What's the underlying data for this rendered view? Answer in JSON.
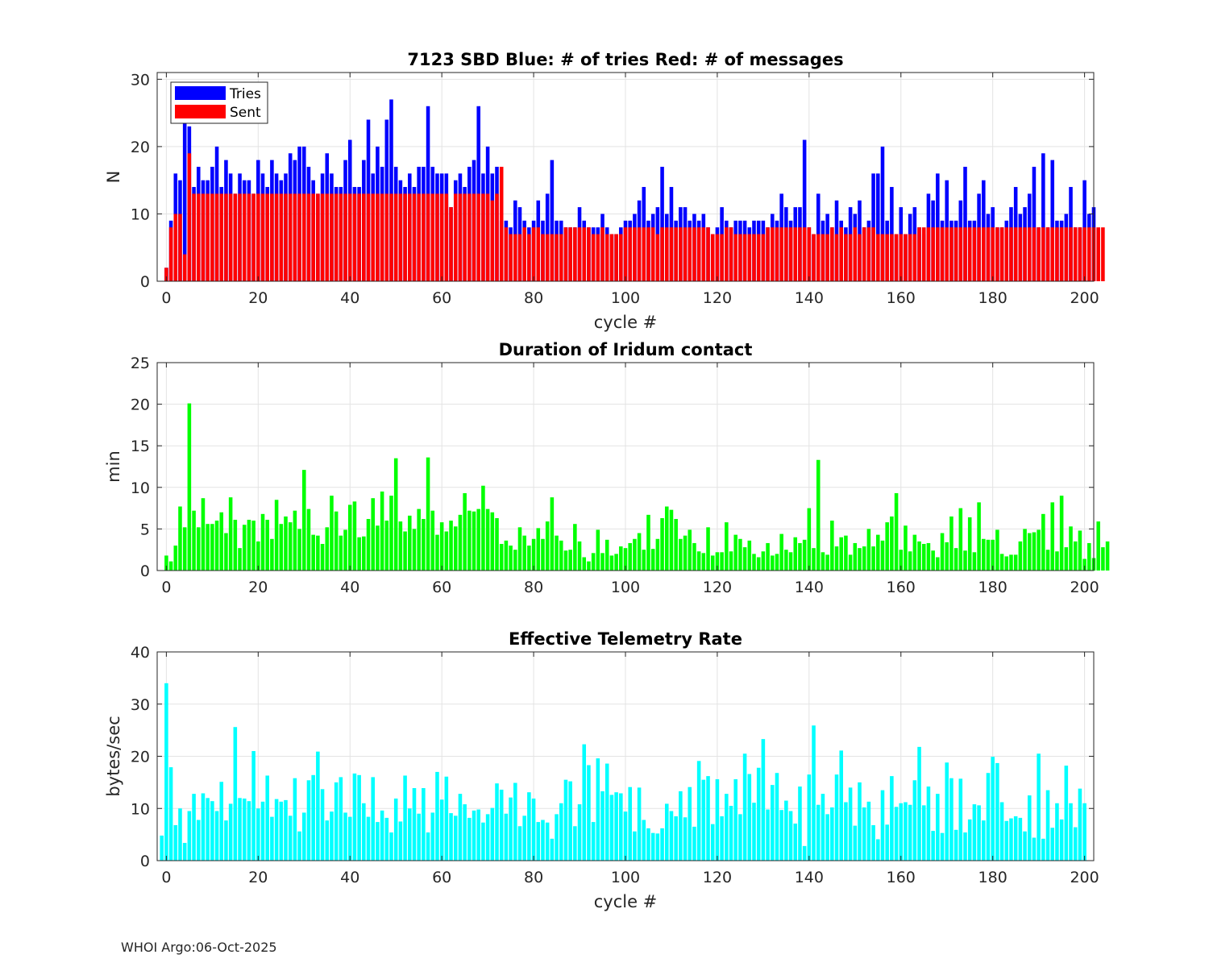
{
  "chart_data": [
    {
      "type": "bar",
      "stacked_overlay": true,
      "title": "7123 SBD  Blue: # of tries   Red: # of messages",
      "xlabel": "cycle #",
      "ylabel": "N",
      "xlim": [
        -2,
        202
      ],
      "ylim": [
        0,
        31
      ],
      "xticks": [
        0,
        20,
        40,
        60,
        80,
        100,
        120,
        140,
        160,
        180,
        200
      ],
      "yticks": [
        0,
        10,
        20,
        30
      ],
      "grid": true,
      "legend": {
        "position": "top-left",
        "entries": [
          "Tries",
          "Sent"
        ]
      },
      "x_start": 0,
      "series": [
        {
          "name": "Tries",
          "color": "#0000ff",
          "values": [
            2,
            9,
            16,
            15,
            24,
            23,
            14,
            17,
            15,
            15,
            17,
            20,
            14,
            18,
            16,
            13,
            16,
            15,
            15,
            13,
            18,
            16,
            14,
            18,
            16,
            15,
            16,
            19,
            18,
            20,
            20,
            17,
            15,
            13,
            16,
            19,
            16,
            14,
            14,
            18,
            21,
            14,
            14,
            18,
            24,
            16,
            20,
            17,
            24,
            27,
            17,
            15,
            14,
            16,
            14,
            17,
            17,
            26,
            17,
            16,
            16,
            16,
            11,
            15,
            16,
            14,
            17,
            18,
            26,
            16,
            20,
            16,
            17,
            9,
            9,
            8,
            12,
            11,
            9,
            8,
            9,
            12,
            9,
            13,
            18,
            9,
            9,
            8,
            8,
            8,
            11,
            9,
            8,
            8,
            8,
            10,
            8,
            7,
            7,
            8,
            9,
            9,
            10,
            12,
            14,
            9,
            10,
            11,
            17,
            10,
            14,
            9,
            11,
            11,
            9,
            10,
            9,
            10,
            8,
            7,
            8,
            11,
            9,
            8,
            9,
            9,
            9,
            8,
            9,
            9,
            9,
            8,
            10,
            9,
            13,
            11,
            9,
            11,
            11,
            21,
            8,
            7,
            13,
            9,
            10,
            8,
            12,
            9,
            8,
            11,
            10,
            12,
            8,
            9,
            16,
            16,
            20,
            9,
            14,
            7,
            11,
            7,
            10,
            11,
            8,
            7,
            13,
            12,
            16,
            9,
            15,
            9,
            9,
            12,
            17,
            9,
            9,
            13,
            15,
            10,
            11,
            8,
            8,
            9,
            11,
            14,
            10,
            11,
            13,
            17,
            8,
            19,
            8,
            18,
            9,
            9,
            10,
            14,
            8,
            8,
            15,
            10,
            11
          ]
        },
        {
          "name": "Sent",
          "color": "#ff0000",
          "values": [
            2,
            8,
            10,
            10,
            4,
            19,
            13,
            13,
            13,
            13,
            13,
            13,
            13,
            13,
            13,
            13,
            13,
            13,
            13,
            13,
            13,
            13,
            13,
            13,
            13,
            13,
            13,
            13,
            13,
            13,
            13,
            13,
            13,
            13,
            13,
            13,
            13,
            13,
            13,
            13,
            13,
            13,
            13,
            13,
            13,
            13,
            13,
            13,
            13,
            13,
            13,
            13,
            13,
            13,
            13,
            13,
            13,
            13,
            13,
            13,
            13,
            13,
            11,
            13,
            13,
            13,
            13,
            13,
            13,
            13,
            13,
            12,
            13,
            17,
            8,
            7,
            7,
            7,
            8,
            7,
            8,
            8,
            7,
            7,
            7,
            7,
            7,
            8,
            8,
            8,
            8,
            8,
            8,
            7,
            7,
            8,
            7,
            7,
            7,
            7,
            8,
            8,
            8,
            8,
            8,
            8,
            8,
            7,
            8,
            8,
            8,
            8,
            8,
            8,
            8,
            8,
            8,
            8,
            8,
            7,
            7,
            7,
            8,
            8,
            7,
            7,
            7,
            7,
            7,
            7,
            7,
            8,
            8,
            8,
            8,
            8,
            8,
            8,
            8,
            8,
            8,
            7,
            7,
            7,
            7,
            8,
            7,
            8,
            7,
            7,
            8,
            7,
            8,
            8,
            8,
            7,
            7,
            7,
            7,
            7,
            7,
            7,
            7,
            7,
            8,
            8,
            8,
            8,
            8,
            8,
            8,
            8,
            8,
            8,
            8,
            8,
            8,
            8,
            8,
            8,
            8,
            8,
            8,
            8,
            8,
            8,
            8,
            8,
            8,
            8,
            8,
            8,
            8,
            8,
            8,
            8,
            8,
            8,
            8,
            8,
            8,
            8,
            8,
            8,
            8
          ]
        }
      ]
    },
    {
      "type": "bar",
      "title": "Duration of Iridum contact",
      "xlabel": "",
      "ylabel": "min",
      "xlim": [
        -2,
        202
      ],
      "ylim": [
        0,
        25
      ],
      "xticks": [
        0,
        20,
        40,
        60,
        80,
        100,
        120,
        140,
        160,
        180,
        200
      ],
      "yticks": [
        0,
        5,
        10,
        15,
        20,
        25
      ],
      "grid": true,
      "x_start": 0,
      "series": [
        {
          "name": "Duration",
          "color": "#00ff00",
          "values": [
            1.8,
            1.1,
            3.0,
            7.7,
            5.2,
            20.1,
            7.2,
            5.2,
            8.7,
            5.6,
            5.6,
            6.0,
            7.0,
            4.5,
            8.8,
            6.1,
            2.7,
            5.5,
            6.1,
            6.0,
            3.5,
            6.8,
            6.1,
            3.8,
            8.5,
            5.6,
            6.5,
            5.8,
            7.2,
            5.0,
            12.1,
            7.4,
            4.3,
            4.2,
            3.2,
            5.2,
            9.0,
            7.1,
            4.2,
            4.9,
            7.9,
            8.3,
            4.0,
            4.1,
            6.2,
            8.7,
            5.4,
            9.5,
            6.0,
            9.0,
            13.5,
            5.9,
            4.7,
            6.6,
            5.0,
            7.4,
            6.2,
            13.6,
            7.2,
            4.3,
            5.8,
            4.7,
            6.0,
            5.3,
            6.7,
            9.3,
            7.2,
            7.1,
            7.4,
            10.2,
            7.4,
            7.0,
            6.3,
            3.2,
            3.6,
            3.0,
            2.5,
            5.2,
            4.2,
            3.0,
            3.8,
            5.1,
            3.8,
            5.9,
            8.8,
            4.2,
            3.6,
            2.4,
            2.5,
            5.6,
            3.5,
            1.6,
            1.1,
            2.1,
            4.9,
            2.1,
            3.7,
            1.8,
            2.0,
            2.9,
            2.7,
            3.3,
            3.8,
            4.5,
            2.5,
            6.7,
            2.6,
            3.8,
            6.3,
            7.7,
            7.3,
            6.2,
            3.8,
            4.2,
            4.9,
            3.3,
            2.3,
            2.1,
            5.2,
            1.8,
            2.2,
            2.2,
            5.8,
            2.3,
            4.3,
            3.8,
            2.8,
            3.6,
            2.0,
            1.6,
            2.3,
            3.3,
            1.8,
            2.0,
            4.4,
            2.5,
            2.2,
            4.0,
            3.3,
            3.7,
            7.5,
            2.7,
            13.3,
            2.2,
            1.9,
            6.0,
            2.9,
            4.0,
            4.2,
            1.9,
            3.3,
            2.7,
            2.9,
            5.0,
            2.9,
            4.3,
            3.6,
            5.8,
            6.5,
            9.3,
            2.5,
            5.4,
            2.3,
            4.3,
            3.5,
            3.2,
            3.3,
            2.4,
            1.6,
            4.5,
            3.4,
            6.5,
            2.7,
            7.5,
            2.4,
            6.4,
            2.2,
            8.2,
            3.8,
            3.7,
            3.7,
            4.9,
            2.0,
            1.7,
            1.9,
            1.9,
            3.5,
            5.0,
            4.5,
            4.6,
            4.9,
            6.8,
            2.5,
            8.2,
            2.3,
            9.0,
            2.8,
            5.3,
            3.5,
            4.8,
            1.4,
            3.3,
            1.5,
            5.9,
            2.8,
            3.5
          ]
        }
      ]
    },
    {
      "type": "bar",
      "title": "Effective Telemetry Rate",
      "xlabel": "cycle #",
      "ylabel": "bytes/sec",
      "xlim": [
        -2,
        202
      ],
      "ylim": [
        0,
        40
      ],
      "xticks": [
        0,
        20,
        40,
        60,
        80,
        100,
        120,
        140,
        160,
        180,
        200
      ],
      "yticks": [
        0,
        10,
        20,
        30,
        40
      ],
      "grid": true,
      "x_start": -1,
      "series": [
        {
          "name": "Rate",
          "color": "#00ffff",
          "values": [
            4.8,
            34.0,
            17.9,
            6.8,
            10.0,
            3.4,
            9.5,
            12.8,
            7.8,
            12.9,
            12.0,
            11.4,
            9.5,
            15.1,
            7.7,
            10.9,
            25.6,
            12.0,
            11.9,
            11.4,
            21.0,
            10.0,
            11.3,
            16.3,
            8.4,
            11.8,
            11.3,
            11.6,
            8.6,
            15.8,
            5.6,
            9.2,
            15.4,
            16.4,
            20.9,
            13.7,
            7.7,
            9.4,
            15.0,
            16.0,
            9.2,
            8.4,
            16.7,
            16.4,
            11.0,
            8.4,
            16.0,
            7.4,
            9.6,
            8.2,
            5.4,
            11.9,
            7.5,
            16.3,
            10.0,
            13.9,
            9.0,
            13.9,
            5.4,
            9.2,
            17.0,
            11.7,
            16.1,
            9.1,
            8.6,
            12.8,
            10.8,
            8.2,
            9.6,
            9.8,
            7.3,
            8.9,
            10.1,
            14.8,
            13.6,
            9.0,
            12.1,
            14.9,
            6.6,
            8.6,
            13.1,
            11.9,
            7.4,
            7.8,
            7.3,
            4.2,
            8.9,
            11.0,
            15.5,
            15.2,
            6.6,
            10.8,
            22.3,
            18.3,
            7.4,
            19.6,
            13.3,
            18.6,
            12.6,
            13.1,
            12.9,
            9.4,
            14.1,
            5.6,
            14.0,
            7.8,
            6.2,
            5.3,
            5.2,
            6.2,
            10.9,
            9.5,
            8.5,
            13.3,
            8.3,
            14.1,
            6.5,
            19.1,
            15.5,
            16.2,
            7.0,
            15.6,
            8.5,
            12.8,
            10.5,
            15.6,
            8.9,
            20.5,
            16.6,
            11.1,
            17.8,
            23.3,
            9.8,
            14.5,
            16.8,
            9.7,
            11.5,
            9.5,
            7.1,
            14.2,
            2.8,
            16.5,
            25.9,
            10.7,
            12.8,
            8.9,
            10.2,
            16.5,
            21.1,
            11.2,
            14.0,
            6.7,
            15.0,
            10.2,
            11.3,
            6.8,
            4.1,
            13.5,
            6.9,
            16.2,
            10.3,
            11.0,
            11.2,
            10.7,
            15.4,
            21.8,
            10.6,
            14.2,
            5.7,
            12.8,
            5.3,
            18.8,
            15.8,
            5.9,
            15.7,
            5.4,
            7.9,
            10.8,
            10.6,
            7.7,
            16.8,
            19.9,
            18.7,
            11.2,
            7.6,
            8.1,
            8.5,
            8.2,
            5.6,
            12.5,
            4.4,
            20.5,
            4.2,
            13.5,
            6.3,
            11.0,
            7.9,
            18.2,
            11.0,
            6.4,
            13.8,
            11.0
          ]
        }
      ]
    }
  ],
  "footer": "WHOI Argo:06-Oct-2025"
}
